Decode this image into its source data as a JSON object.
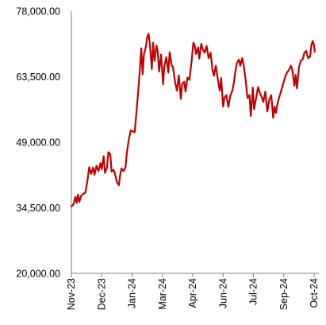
{
  "chart_data": {
    "type": "line",
    "title": "",
    "xlabel": "",
    "ylabel": "",
    "ylim": [
      20000,
      78000
    ],
    "y_ticks": [
      "78,000.00",
      "63,500.00",
      "49,000.00",
      "34,500.00",
      "20,000.00"
    ],
    "y_tick_values": [
      78000,
      63500,
      49000,
      34500,
      20000
    ],
    "x_ticks": [
      "Nov-23",
      "Dec-23",
      "Jan-24",
      "Mar-24",
      "Apr-24",
      "Jun-24",
      "Jul-24",
      "Sep-24",
      "Oct-24"
    ],
    "x_tick_dates": [
      "2023-11-01",
      "2023-12-17",
      "2024-02-01",
      "2024-03-18",
      "2024-05-03",
      "2024-06-18",
      "2024-08-03",
      "2024-09-18",
      "2024-11-03"
    ],
    "grid": false,
    "legend": "none",
    "series": [
      {
        "color": "#c00000",
        "points": [
          [
            "2023-11-01",
            34800
          ],
          [
            "2023-11-04",
            35200
          ],
          [
            "2023-11-07",
            36900
          ],
          [
            "2023-11-09",
            35600
          ],
          [
            "2023-11-11",
            37400
          ],
          [
            "2023-11-13",
            35800
          ],
          [
            "2023-11-16",
            37200
          ],
          [
            "2023-11-19",
            37600
          ],
          [
            "2023-11-22",
            37800
          ],
          [
            "2023-11-25",
            40200
          ],
          [
            "2023-11-28",
            43500
          ],
          [
            "2023-12-01",
            42000
          ],
          [
            "2023-12-04",
            43400
          ],
          [
            "2023-12-06",
            41800
          ],
          [
            "2023-12-09",
            43800
          ],
          [
            "2023-12-12",
            42600
          ],
          [
            "2023-12-15",
            44400
          ],
          [
            "2023-12-17",
            43000
          ],
          [
            "2023-12-20",
            45900
          ],
          [
            "2023-12-22",
            42200
          ],
          [
            "2023-12-25",
            43500
          ],
          [
            "2023-12-27",
            46800
          ],
          [
            "2023-12-30",
            46300
          ],
          [
            "2024-01-01",
            42500
          ],
          [
            "2024-01-04",
            42900
          ],
          [
            "2024-01-07",
            41500
          ],
          [
            "2024-01-09",
            40200
          ],
          [
            "2024-01-12",
            39500
          ],
          [
            "2024-01-14",
            41800
          ],
          [
            "2024-01-16",
            43200
          ],
          [
            "2024-01-19",
            42600
          ],
          [
            "2024-01-22",
            43400
          ],
          [
            "2024-01-24",
            46500
          ],
          [
            "2024-01-27",
            49500
          ],
          [
            "2024-01-30",
            51600
          ],
          [
            "2024-02-02",
            51400
          ],
          [
            "2024-02-05",
            51200
          ],
          [
            "2024-02-08",
            56200
          ],
          [
            "2024-02-11",
            61500
          ],
          [
            "2024-02-13",
            65500
          ],
          [
            "2024-02-15",
            69800
          ],
          [
            "2024-02-17",
            64000
          ],
          [
            "2024-02-19",
            68500
          ],
          [
            "2024-02-22",
            70200
          ],
          [
            "2024-02-24",
            72300
          ],
          [
            "2024-02-26",
            73000
          ],
          [
            "2024-02-28",
            70600
          ],
          [
            "2024-03-02",
            65200
          ],
          [
            "2024-03-04",
            71000
          ],
          [
            "2024-03-06",
            67000
          ],
          [
            "2024-03-09",
            70400
          ],
          [
            "2024-03-11",
            69000
          ],
          [
            "2024-03-13",
            64600
          ],
          [
            "2024-03-16",
            68400
          ],
          [
            "2024-03-19",
            61800
          ],
          [
            "2024-03-21",
            65800
          ],
          [
            "2024-03-24",
            67800
          ],
          [
            "2024-03-27",
            64400
          ],
          [
            "2024-03-29",
            68900
          ],
          [
            "2024-04-01",
            66000
          ],
          [
            "2024-04-03",
            65600
          ],
          [
            "2024-04-06",
            62500
          ],
          [
            "2024-04-09",
            60400
          ],
          [
            "2024-04-12",
            63800
          ],
          [
            "2024-04-15",
            58600
          ],
          [
            "2024-04-17",
            61900
          ],
          [
            "2024-04-20",
            62400
          ],
          [
            "2024-04-22",
            60200
          ],
          [
            "2024-04-25",
            63300
          ],
          [
            "2024-04-28",
            62800
          ],
          [
            "2024-05-01",
            66500
          ],
          [
            "2024-05-04",
            71000
          ],
          [
            "2024-05-06",
            70400
          ],
          [
            "2024-05-08",
            68500
          ],
          [
            "2024-05-11",
            70000
          ],
          [
            "2024-05-13",
            67500
          ],
          [
            "2024-05-16",
            70800
          ],
          [
            "2024-05-18",
            69600
          ],
          [
            "2024-05-21",
            68800
          ],
          [
            "2024-05-24",
            70300
          ],
          [
            "2024-05-27",
            67600
          ],
          [
            "2024-05-30",
            68800
          ],
          [
            "2024-06-02",
            65000
          ],
          [
            "2024-06-04",
            63700
          ],
          [
            "2024-06-07",
            65900
          ],
          [
            "2024-06-10",
            62900
          ],
          [
            "2024-06-13",
            60400
          ],
          [
            "2024-06-15",
            63200
          ],
          [
            "2024-06-18",
            56900
          ],
          [
            "2024-06-20",
            58800
          ],
          [
            "2024-06-23",
            59400
          ],
          [
            "2024-06-26",
            56800
          ],
          [
            "2024-06-29",
            59300
          ],
          [
            "2024-07-02",
            60400
          ],
          [
            "2024-07-04",
            61900
          ],
          [
            "2024-07-07",
            64900
          ],
          [
            "2024-07-09",
            66500
          ],
          [
            "2024-07-12",
            67300
          ],
          [
            "2024-07-14",
            65900
          ],
          [
            "2024-07-17",
            67600
          ],
          [
            "2024-07-19",
            66200
          ],
          [
            "2024-07-22",
            63000
          ],
          [
            "2024-07-25",
            58800
          ],
          [
            "2024-07-28",
            59400
          ],
          [
            "2024-07-30",
            54800
          ],
          [
            "2024-08-02",
            61100
          ],
          [
            "2024-08-04",
            56300
          ],
          [
            "2024-08-07",
            58700
          ],
          [
            "2024-08-10",
            61200
          ],
          [
            "2024-08-13",
            59800
          ],
          [
            "2024-08-16",
            58900
          ],
          [
            "2024-08-18",
            57900
          ],
          [
            "2024-08-21",
            60200
          ],
          [
            "2024-08-24",
            55800
          ],
          [
            "2024-08-27",
            58400
          ],
          [
            "2024-08-30",
            59400
          ],
          [
            "2024-09-02",
            54400
          ],
          [
            "2024-09-04",
            56900
          ],
          [
            "2024-09-06",
            55500
          ],
          [
            "2024-09-09",
            57900
          ],
          [
            "2024-09-12",
            59400
          ],
          [
            "2024-09-15",
            60900
          ],
          [
            "2024-09-18",
            62400
          ],
          [
            "2024-09-21",
            63800
          ],
          [
            "2024-09-23",
            64400
          ],
          [
            "2024-09-26",
            65100
          ],
          [
            "2024-09-29",
            65900
          ],
          [
            "2024-10-01",
            64900
          ],
          [
            "2024-10-04",
            61500
          ],
          [
            "2024-10-06",
            63900
          ],
          [
            "2024-10-08",
            60900
          ],
          [
            "2024-10-11",
            65600
          ],
          [
            "2024-10-14",
            67100
          ],
          [
            "2024-10-17",
            67400
          ],
          [
            "2024-10-19",
            68700
          ],
          [
            "2024-10-22",
            69200
          ],
          [
            "2024-10-25",
            67600
          ],
          [
            "2024-10-28",
            68000
          ],
          [
            "2024-10-30",
            70600
          ],
          [
            "2024-11-01",
            71400
          ],
          [
            "2024-11-03",
            70400
          ],
          [
            "2024-11-04",
            69000
          ]
        ]
      }
    ]
  }
}
